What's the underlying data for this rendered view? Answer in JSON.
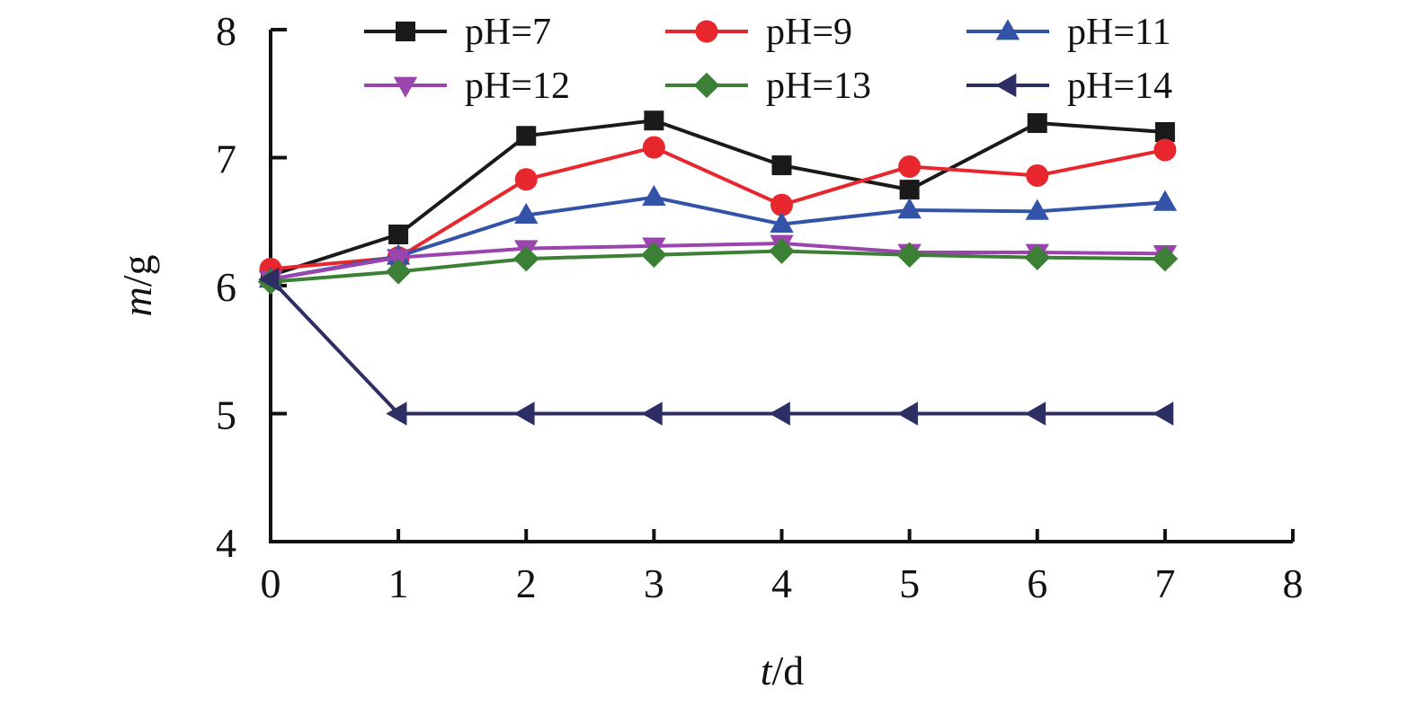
{
  "chart_data": {
    "type": "line",
    "xlabel": {
      "var": "t",
      "unit": "/d"
    },
    "ylabel": {
      "var": "m",
      "unit": "/g"
    },
    "xlim": [
      0,
      8
    ],
    "ylim": [
      4,
      8
    ],
    "xticks": [
      "0",
      "1",
      "2",
      "3",
      "4",
      "5",
      "6",
      "7",
      "8"
    ],
    "yticks": [
      "4",
      "5",
      "6",
      "7",
      "8"
    ],
    "grid": false,
    "legend_position": "top",
    "x": [
      0,
      1,
      2,
      3,
      4,
      5,
      6,
      7
    ],
    "series": [
      {
        "name": "pH=7",
        "color": "#1a1a1a",
        "marker": "square",
        "values": [
          6.08,
          6.4,
          7.17,
          7.29,
          6.94,
          6.75,
          7.27,
          7.2
        ]
      },
      {
        "name": "pH=9",
        "color": "#e8262d",
        "marker": "circle",
        "values": [
          6.13,
          6.22,
          6.83,
          7.08,
          6.63,
          6.93,
          6.86,
          7.06
        ]
      },
      {
        "name": "pH=11",
        "color": "#3353a9",
        "marker": "triangle-up",
        "values": [
          6.05,
          6.23,
          6.55,
          6.69,
          6.48,
          6.59,
          6.58,
          6.65
        ]
      },
      {
        "name": "pH=12",
        "color": "#9a44ad",
        "marker": "triangle-down",
        "values": [
          6.05,
          6.22,
          6.29,
          6.31,
          6.33,
          6.26,
          6.26,
          6.25
        ]
      },
      {
        "name": "pH=13",
        "color": "#3b8034",
        "marker": "diamond",
        "values": [
          6.03,
          6.11,
          6.21,
          6.24,
          6.27,
          6.24,
          6.22,
          6.21
        ]
      },
      {
        "name": "pH=14",
        "color": "#2c2e64",
        "marker": "triangle-left",
        "values": [
          6.05,
          5.0,
          5.0,
          5.0,
          5.0,
          5.0,
          5.0,
          5.0
        ]
      }
    ]
  }
}
